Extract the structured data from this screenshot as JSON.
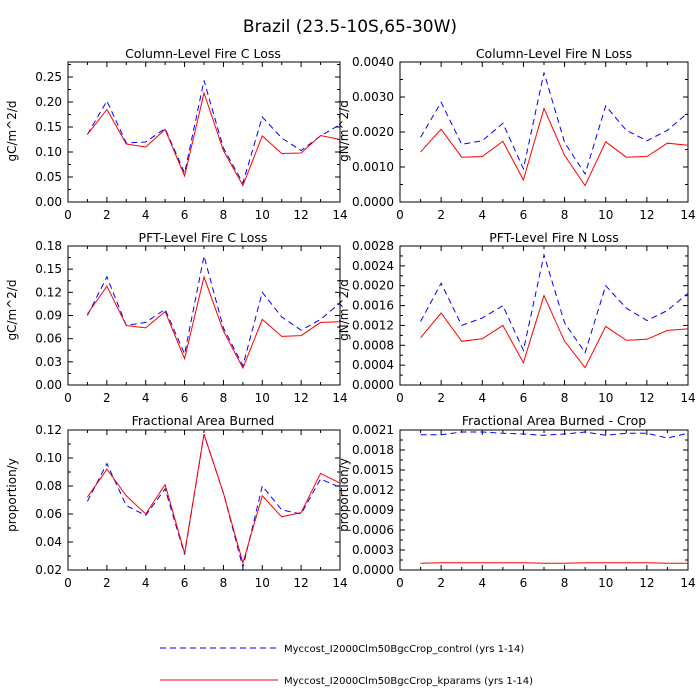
{
  "figure_title": "Brazil (23.5-10S,65-30W)",
  "legend": [
    {
      "label": "Myccost_I2000Clm50BgcCrop_control (yrs 1-14)",
      "color": "#0000ff",
      "dash": "dashed"
    },
    {
      "label": "Myccost_I2000Clm50BgcCrop_kparams (yrs 1-14)",
      "color": "#ff0000",
      "dash": "solid"
    }
  ],
  "chart_data": [
    {
      "type": "line",
      "title": "Column-Level Fire C Loss",
      "ylabel": "gC/m^2/d",
      "x": [
        1,
        2,
        3,
        4,
        5,
        6,
        7,
        8,
        9,
        10,
        11,
        12,
        13,
        14
      ],
      "xlim": [
        0,
        14
      ],
      "xticks": [
        "0",
        "2",
        "4",
        "6",
        "8",
        "10",
        "12",
        "14"
      ],
      "ylim": [
        0,
        0.28
      ],
      "yticks": [
        0,
        0.05,
        0.1,
        0.15,
        0.2,
        0.25
      ],
      "ytick_labels": [
        "0.00",
        "0.05",
        "0.10",
        "0.15",
        "0.20",
        "0.25"
      ],
      "series": [
        {
          "name": "Myccost_I2000Clm50BgcCrop_control (yrs 1-14)",
          "color": "#0000ff",
          "dash": "dashed",
          "values": [
            0.135,
            0.202,
            0.118,
            0.12,
            0.147,
            0.058,
            0.243,
            0.108,
            0.038,
            0.17,
            0.128,
            0.103,
            0.132,
            0.155
          ]
        },
        {
          "name": "Myccost_I2000Clm50BgcCrop_kparams (yrs 1-14)",
          "color": "#ff0000",
          "dash": "solid",
          "values": [
            0.135,
            0.185,
            0.116,
            0.11,
            0.145,
            0.052,
            0.218,
            0.103,
            0.033,
            0.132,
            0.097,
            0.098,
            0.133,
            0.125
          ]
        }
      ]
    },
    {
      "type": "line",
      "title": "Column-Level Fire N Loss",
      "ylabel": "gN/m^2/d",
      "x": [
        1,
        2,
        3,
        4,
        5,
        6,
        7,
        8,
        9,
        10,
        11,
        12,
        13,
        14
      ],
      "xlim": [
        0,
        14
      ],
      "xticks": [
        "0",
        "2",
        "4",
        "6",
        "8",
        "10",
        "12",
        "14"
      ],
      "ylim": [
        0,
        0.004
      ],
      "yticks": [
        0,
        0.001,
        0.002,
        0.003,
        0.004
      ],
      "ytick_labels": [
        "0.0000",
        "0.0010",
        "0.0020",
        "0.0030",
        "0.0040"
      ],
      "series": [
        {
          "name": "Myccost_I2000Clm50BgcCrop_control (yrs 1-14)",
          "color": "#0000ff",
          "dash": "dashed",
          "values": [
            0.00185,
            0.00285,
            0.00165,
            0.00175,
            0.00225,
            0.00095,
            0.0037,
            0.0017,
            0.0008,
            0.00275,
            0.00205,
            0.00175,
            0.00205,
            0.00255
          ]
        },
        {
          "name": "Myccost_I2000Clm50BgcCrop_kparams (yrs 1-14)",
          "color": "#ff0000",
          "dash": "solid",
          "values": [
            0.00143,
            0.00208,
            0.00128,
            0.0013,
            0.00173,
            0.00063,
            0.00267,
            0.00133,
            0.00047,
            0.00172,
            0.00128,
            0.0013,
            0.00168,
            0.00162
          ]
        }
      ]
    },
    {
      "type": "line",
      "title": "PFT-Level Fire C Loss",
      "ylabel": "gC/m^2/d",
      "x": [
        1,
        2,
        3,
        4,
        5,
        6,
        7,
        8,
        9,
        10,
        11,
        12,
        13,
        14
      ],
      "xlim": [
        0,
        14
      ],
      "xticks": [
        "0",
        "2",
        "4",
        "6",
        "8",
        "10",
        "12",
        "14"
      ],
      "ylim": [
        0,
        0.18
      ],
      "yticks": [
        0,
        0.03,
        0.06,
        0.09,
        0.12,
        0.15,
        0.18
      ],
      "ytick_labels": [
        "0.00",
        "0.03",
        "0.06",
        "0.09",
        "0.12",
        "0.15",
        "0.18"
      ],
      "series": [
        {
          "name": "Myccost_I2000Clm50BgcCrop_control (yrs 1-14)",
          "color": "#0000ff",
          "dash": "dashed",
          "values": [
            0.09,
            0.14,
            0.077,
            0.081,
            0.098,
            0.04,
            0.167,
            0.074,
            0.025,
            0.12,
            0.088,
            0.071,
            0.085,
            0.106
          ]
        },
        {
          "name": "Myccost_I2000Clm50BgcCrop_kparams (yrs 1-14)",
          "color": "#ff0000",
          "dash": "solid",
          "values": [
            0.092,
            0.128,
            0.077,
            0.074,
            0.095,
            0.034,
            0.14,
            0.07,
            0.022,
            0.085,
            0.063,
            0.064,
            0.081,
            0.082
          ]
        }
      ]
    },
    {
      "type": "line",
      "title": "PFT-Level Fire N Loss",
      "ylabel": "gN/m^2/d",
      "x": [
        1,
        2,
        3,
        4,
        5,
        6,
        7,
        8,
        9,
        10,
        11,
        12,
        13,
        14
      ],
      "xlim": [
        0,
        14
      ],
      "xticks": [
        "0",
        "2",
        "4",
        "6",
        "8",
        "10",
        "12",
        "14"
      ],
      "ylim": [
        0,
        0.0028
      ],
      "yticks": [
        0,
        0.0004,
        0.0008,
        0.0012,
        0.0016,
        0.002,
        0.0024,
        0.0028
      ],
      "ytick_labels": [
        "0.0000",
        "0.0004",
        "0.0008",
        "0.0012",
        "0.0016",
        "0.0020",
        "0.0024",
        "0.0028"
      ],
      "series": [
        {
          "name": "Myccost_I2000Clm50BgcCrop_control (yrs 1-14)",
          "color": "#0000ff",
          "dash": "dashed",
          "values": [
            0.00128,
            0.00205,
            0.0012,
            0.00135,
            0.0016,
            0.0007,
            0.00262,
            0.00125,
            0.00065,
            0.002,
            0.00155,
            0.0013,
            0.0015,
            0.00185
          ]
        },
        {
          "name": "Myccost_I2000Clm50BgcCrop_kparams (yrs 1-14)",
          "color": "#ff0000",
          "dash": "solid",
          "values": [
            0.00095,
            0.00145,
            0.00088,
            0.00093,
            0.0012,
            0.00045,
            0.0018,
            0.00088,
            0.00035,
            0.00118,
            0.0009,
            0.00092,
            0.0011,
            0.00113
          ]
        }
      ]
    },
    {
      "type": "line",
      "title": "Fractional Area Burned",
      "ylabel": "proportion/y",
      "x": [
        1,
        2,
        3,
        4,
        5,
        6,
        7,
        8,
        9,
        10,
        11,
        12,
        13,
        14
      ],
      "xlim": [
        0,
        14
      ],
      "xticks": [
        "0",
        "2",
        "4",
        "6",
        "8",
        "10",
        "12",
        "14"
      ],
      "ylim": [
        0.02,
        0.12
      ],
      "yticks": [
        0.02,
        0.04,
        0.06,
        0.08,
        0.1,
        0.12
      ],
      "ytick_labels": [
        "0.02",
        "0.04",
        "0.06",
        "0.08",
        "0.10",
        "0.12"
      ],
      "series": [
        {
          "name": "Myccost_I2000Clm50BgcCrop_control (yrs 1-14)",
          "color": "#0000ff",
          "dash": "dashed",
          "values": [
            0.069,
            0.096,
            0.066,
            0.059,
            0.078,
            0.031,
            0.117,
            0.075,
            0.022,
            0.08,
            0.063,
            0.06,
            0.085,
            0.079
          ]
        },
        {
          "name": "Myccost_I2000Clm50BgcCrop_kparams (yrs 1-14)",
          "color": "#ff0000",
          "dash": "solid",
          "values": [
            0.072,
            0.092,
            0.073,
            0.06,
            0.081,
            0.032,
            0.117,
            0.075,
            0.025,
            0.073,
            0.058,
            0.061,
            0.089,
            0.082
          ]
        }
      ]
    },
    {
      "type": "line",
      "title": "Fractional Area Burned - Crop",
      "ylabel": "proportion/y",
      "x": [
        1,
        2,
        3,
        4,
        5,
        6,
        7,
        8,
        9,
        10,
        11,
        12,
        13,
        14
      ],
      "xlim": [
        0,
        14
      ],
      "xticks": [
        "0",
        "2",
        "4",
        "6",
        "8",
        "10",
        "12",
        "14"
      ],
      "ylim": [
        0,
        0.0021
      ],
      "yticks": [
        0,
        0.0003,
        0.0006,
        0.0009,
        0.0012,
        0.0015,
        0.0018,
        0.0021
      ],
      "ytick_labels": [
        "0.0000",
        "0.0003",
        "0.0006",
        "0.0009",
        "0.0012",
        "0.0015",
        "0.0018",
        "0.0021"
      ],
      "series": [
        {
          "name": "Myccost_I2000Clm50BgcCrop_control (yrs 1-14)",
          "color": "#0000ff",
          "dash": "dashed",
          "values": [
            0.00203,
            0.00203,
            0.00207,
            0.00207,
            0.00205,
            0.00204,
            0.00202,
            0.00204,
            0.00207,
            0.00202,
            0.00205,
            0.00205,
            0.00198,
            0.00205
          ]
        },
        {
          "name": "Myccost_I2000Clm50BgcCrop_kparams (yrs 1-14)",
          "color": "#ff0000",
          "dash": "solid",
          "values": [
            0.0001,
            0.00011,
            0.00011,
            0.00011,
            0.00011,
            0.00011,
            0.0001,
            0.0001,
            0.00011,
            0.00011,
            0.00011,
            0.00011,
            0.0001,
            0.0001
          ]
        }
      ]
    }
  ]
}
